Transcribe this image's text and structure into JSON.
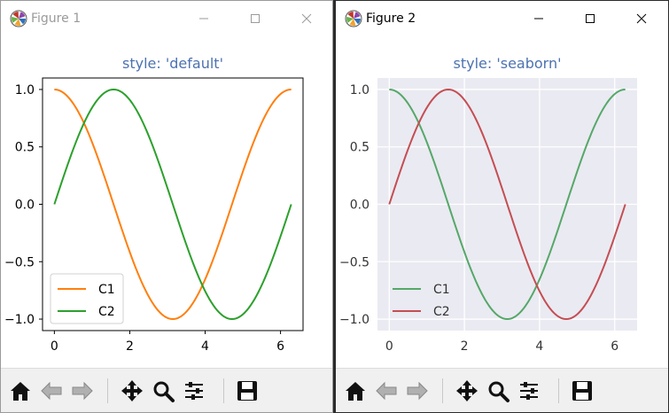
{
  "windows": [
    {
      "title": "Figure 1",
      "active": false,
      "chart_data": {
        "type": "line",
        "title": "style: 'default'",
        "xlabel": "",
        "ylabel": "",
        "xlim": [
          -0.314,
          6.597
        ],
        "ylim": [
          -1.1,
          1.1
        ],
        "xticks": [
          "0",
          "2",
          "4",
          "6"
        ],
        "yticks": [
          "1.0",
          "0.5",
          "0.0",
          "−0.5",
          "−1.0"
        ],
        "grid": false,
        "background": "#ffffff",
        "legend_position": "lower left",
        "series": [
          {
            "name": "C1",
            "color": "#ff7f0e",
            "x": [
              0,
              0.785,
              1.571,
              2.356,
              3.142,
              3.927,
              4.712,
              5.498,
              6.283
            ],
            "values": [
              1.0,
              0.707,
              0.0,
              -0.707,
              -1.0,
              -0.707,
              0.0,
              0.707,
              1.0
            ]
          },
          {
            "name": "C2",
            "color": "#2ca02c",
            "x": [
              0,
              0.785,
              1.571,
              2.356,
              3.142,
              3.927,
              4.712,
              5.498,
              6.283
            ],
            "values": [
              0.0,
              0.707,
              1.0,
              0.707,
              0.0,
              -0.707,
              -1.0,
              -0.707,
              0.0
            ]
          }
        ]
      }
    },
    {
      "title": "Figure 2",
      "active": true,
      "chart_data": {
        "type": "line",
        "title": "style: 'seaborn'",
        "xlabel": "",
        "ylabel": "",
        "xlim": [
          -0.314,
          6.597
        ],
        "ylim": [
          -1.1,
          1.1
        ],
        "xticks": [
          "0",
          "2",
          "4",
          "6"
        ],
        "yticks": [
          "1.0",
          "0.5",
          "0.0",
          "−0.5",
          "−1.0"
        ],
        "grid": true,
        "background": "#eaeaf2",
        "legend_position": "lower left",
        "series": [
          {
            "name": "C1",
            "color": "#55a868",
            "x": [
              0,
              0.785,
              1.571,
              2.356,
              3.142,
              3.927,
              4.712,
              5.498,
              6.283
            ],
            "values": [
              1.0,
              0.707,
              0.0,
              -0.707,
              -1.0,
              -0.707,
              0.0,
              0.707,
              1.0
            ]
          },
          {
            "name": "C2",
            "color": "#c44e52",
            "x": [
              0,
              0.785,
              1.571,
              2.356,
              3.142,
              3.927,
              4.712,
              5.498,
              6.283
            ],
            "values": [
              0.0,
              0.707,
              1.0,
              0.707,
              0.0,
              -0.707,
              -1.0,
              -0.707,
              0.0
            ]
          }
        ]
      }
    }
  ],
  "toolbar_buttons": [
    "home-icon",
    "back-arrow-icon",
    "forward-arrow-icon",
    "pan-icon",
    "zoom-icon",
    "configure-subplots-icon",
    "save-icon"
  ],
  "colors": {
    "title": "#4c72b0",
    "tick_text": "#000000",
    "seaborn_tick_text": "#333333"
  }
}
